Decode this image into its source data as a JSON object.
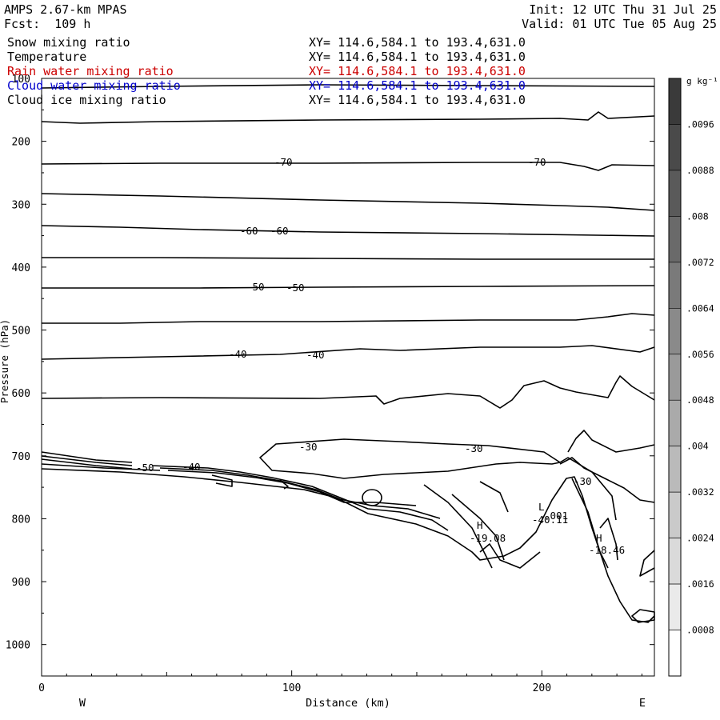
{
  "header": {
    "model": "AMPS 2.67-km MPAS",
    "fcst": "Fcst:  109 h",
    "init": "Init: 12 UTC Thu 31 Jul 25",
    "valid": "Valid: 01 UTC Tue 05 Aug 25"
  },
  "fields": [
    {
      "name": "Snow mixing ratio",
      "xy": "XY= 114.6,584.1 to 193.4,631.0",
      "color": "#000000"
    },
    {
      "name": "Temperature",
      "xy": "XY= 114.6,584.1 to 193.4,631.0",
      "color": "#000000"
    },
    {
      "name": "Rain water mixing ratio",
      "xy": "XY= 114.6,584.1 to 193.4,631.0",
      "color": "#cc0000"
    },
    {
      "name": "Cloud water mixing ratio",
      "xy": "XY= 114.6,584.1 to 193.4,631.0",
      "color": "#0000cc"
    },
    {
      "name": "Cloud ice mixing ratio",
      "xy": "XY= 114.6,584.1 to 193.4,631.0",
      "color": "#000000"
    }
  ],
  "chart_data": {
    "type": "contour",
    "xlabel": "Distance (km)",
    "ylabel": "Pressure (hPa)",
    "xlim": [
      0,
      245
    ],
    "ylim": [
      1050,
      100
    ],
    "x_ticks": [
      0,
      100,
      200
    ],
    "y_ticks": [
      100,
      200,
      300,
      400,
      500,
      600,
      700,
      800,
      900,
      1000
    ],
    "direction_labels": {
      "left": "W",
      "right": "E"
    },
    "temperature_isotherms": [
      {
        "label": "-70",
        "positions_km": [
          93,
          196
        ],
        "pressure_hPa": 230
      },
      {
        "label": "-60",
        "positions_km": [
          82,
          95
        ],
        "pressure_hPa": 347
      },
      {
        "label": "-50",
        "positions_km": [
          85,
          101
        ],
        "pressure_hPa": 430
      },
      {
        "label": "-40",
        "positions_km": [
          78,
          109
        ],
        "pressure_hPa": 540
      },
      {
        "label": "-30",
        "positions_km": [
          107,
          173
        ],
        "pressure_hPa": 685
      },
      {
        "label": "-30",
        "positions_km": [
          217
        ],
        "pressure_hPa": 740
      },
      {
        "label": "-50",
        "positions_km": [
          42
        ],
        "pressure_hPa": 718
      },
      {
        "label": "-40",
        "positions_km": [
          60
        ],
        "pressure_hPa": 718
      }
    ],
    "extrema": [
      {
        "type": "H",
        "value": "-19.08",
        "x_km": 178,
        "pressure_hPa": 810
      },
      {
        "type": "L",
        "value": ".001",
        "x_km": 199,
        "pressure_hPa": 782
      },
      {
        "type": "",
        "value": "-40.11",
        "x_km": 204,
        "pressure_hPa": 800
      },
      {
        "type": "H",
        "value": "-18.46",
        "x_km": 226,
        "pressure_hPa": 837
      }
    ],
    "colorbar": {
      "unit": "g kg⁻¹",
      "ticks": [
        ".0096",
        ".0088",
        ".008",
        ".0072",
        ".0064",
        ".0056",
        ".0048",
        ".004",
        ".0032",
        ".0024",
        ".0016",
        ".0008"
      ],
      "colors": [
        "#3a3a3a",
        "#4a4a4a",
        "#5a5a5a",
        "#6a6a6a",
        "#7a7a7a",
        "#8a8a8a",
        "#9a9a9a",
        "#aaaaaa",
        "#bababa",
        "#cacaca",
        "#dadada",
        "#eaeaea",
        "#ffffff"
      ]
    }
  }
}
